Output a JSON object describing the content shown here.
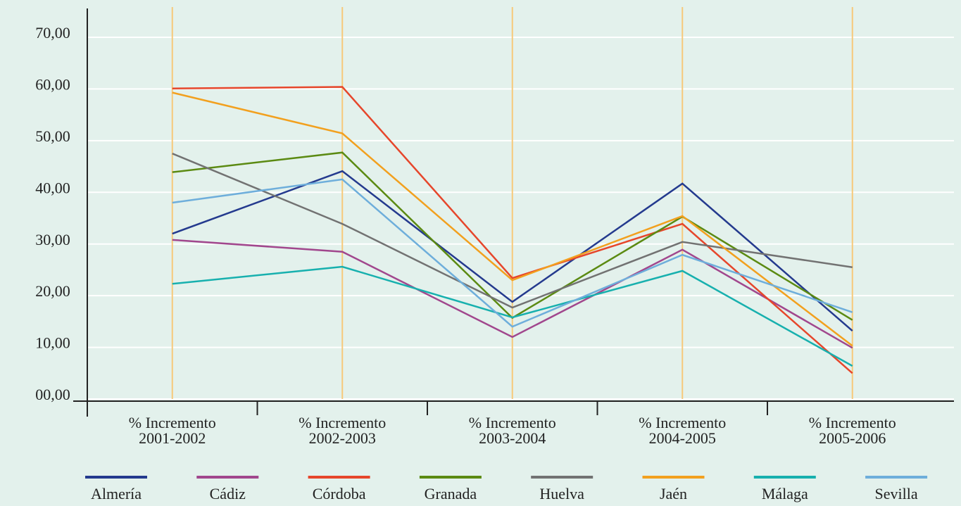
{
  "chart_data": {
    "type": "line",
    "categories": [
      "% Incremento 2001-2002",
      "% Incremento 2002-2003",
      "% Incremento 2003-2004",
      "% Incremento 2004-2005",
      "% Incremento 2005-2006"
    ],
    "series": [
      {
        "name": "Almería",
        "color": "#243a8e",
        "values": [
          32.0,
          44.1,
          18.8,
          41.7,
          13.2
        ]
      },
      {
        "name": "Cádiz",
        "color": "#a1478d",
        "values": [
          30.8,
          28.5,
          12.0,
          28.9,
          9.9
        ]
      },
      {
        "name": "Córdoba",
        "color": "#e6462b",
        "values": [
          60.1,
          60.4,
          23.4,
          33.9,
          5.0
        ]
      },
      {
        "name": "Granada",
        "color": "#5b8a12",
        "values": [
          43.9,
          47.7,
          15.7,
          35.3,
          15.3
        ]
      },
      {
        "name": "Huelva",
        "color": "#727272",
        "values": [
          47.5,
          33.9,
          17.7,
          30.4,
          25.5
        ]
      },
      {
        "name": "Jaén",
        "color": "#f2a01e",
        "values": [
          59.3,
          51.4,
          23.0,
          35.4,
          10.3
        ]
      },
      {
        "name": "Málaga",
        "color": "#17b0ae",
        "values": [
          22.3,
          25.6,
          15.8,
          24.8,
          6.4
        ]
      },
      {
        "name": "Sevilla",
        "color": "#6eaedb",
        "values": [
          38.0,
          42.5,
          14.0,
          27.9,
          16.8
        ]
      }
    ],
    "ylim": [
      0,
      70
    ],
    "yticks": [
      {
        "value": 0,
        "label": "00,00"
      },
      {
        "value": 10,
        "label": "10,00"
      },
      {
        "value": 20,
        "label": "20,00"
      },
      {
        "value": 30,
        "label": "30,00"
      },
      {
        "value": 40,
        "label": "40,00"
      },
      {
        "value": 50,
        "label": "50,00"
      },
      {
        "value": 60,
        "label": "60,00"
      },
      {
        "value": 70,
        "label": "70,00"
      }
    ],
    "grid": true
  }
}
